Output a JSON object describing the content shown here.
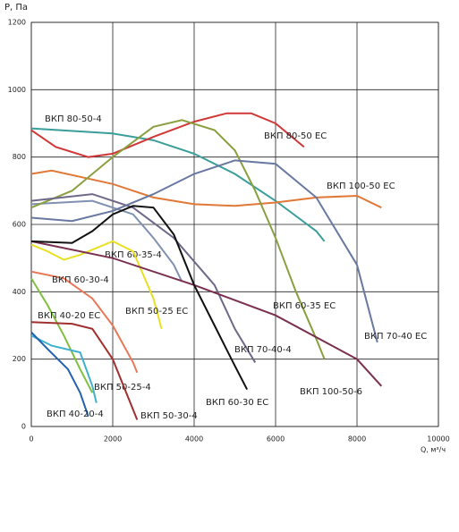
{
  "chart_data": {
    "type": "line",
    "y_label": "P, Па",
    "x_label": "Q, м³/ч",
    "xlim": [
      0,
      10000
    ],
    "ylim": [
      0,
      1200
    ],
    "xticks": [
      0,
      2000,
      4000,
      6000,
      8000,
      10000
    ],
    "yticks": [
      0,
      200,
      400,
      600,
      800,
      1000,
      1200
    ],
    "grid": true,
    "series": [
      {
        "name": "ВКП 80-50-4",
        "color": "#3a9e9a",
        "x": [
          0,
          2000,
          3000,
          4000,
          5000,
          6000,
          7000,
          7200
        ],
        "values": [
          885,
          870,
          850,
          810,
          750,
          670,
          580,
          550
        ]
      },
      {
        "name": "ВКП 80-50 EC",
        "color": "#d03838",
        "x": [
          0,
          600,
          1400,
          2000,
          3000,
          4000,
          4800,
          5400,
          6000,
          6700
        ],
        "values": [
          880,
          830,
          800,
          810,
          860,
          905,
          930,
          930,
          900,
          830
        ]
      },
      {
        "name": "ВКП 100-50 EC",
        "color": "#e07838",
        "x": [
          0,
          500,
          2000,
          3000,
          4000,
          5000,
          6000,
          7000,
          8000,
          8600
        ],
        "values": [
          750,
          760,
          720,
          680,
          660,
          655,
          665,
          680,
          685,
          650
        ]
      },
      {
        "name": "ВКП 60-35-4",
        "color": "#8090b0",
        "x": [
          0,
          1500,
          2500,
          3000,
          3500,
          3700
        ],
        "values": [
          660,
          670,
          630,
          560,
          480,
          430
        ]
      },
      {
        "name": "ВКП 60-30-4",
        "color": "#e87858",
        "x": [
          0,
          800,
          1500,
          2000,
          2500,
          2600
        ],
        "values": [
          460,
          440,
          380,
          300,
          190,
          160
        ]
      },
      {
        "name": "ВКП 50-25 EC",
        "color": "#e8e020",
        "x": [
          0,
          400,
          800,
          1200,
          2000,
          2500,
          3000,
          3200
        ],
        "values": [
          540,
          520,
          495,
          510,
          550,
          520,
          380,
          290
        ]
      },
      {
        "name": "ВКП 60-35 EC",
        "color": "#8aa040",
        "x": [
          0,
          1000,
          2000,
          3000,
          3700,
          4500,
          5000,
          5500,
          6000,
          6500,
          7000,
          7200
        ],
        "values": [
          650,
          700,
          800,
          890,
          910,
          880,
          820,
          700,
          560,
          400,
          260,
          200
        ]
      },
      {
        "name": "ВКП 40-20 EC",
        "color": "#80c040",
        "x": [
          0,
          400,
          800,
          1200,
          1500
        ],
        "values": [
          440,
          360,
          270,
          170,
          100
        ]
      },
      {
        "name": "ВКП 70-40-4",
        "color": "#706888",
        "x": [
          0,
          1500,
          2500,
          3500,
          4500,
          5000,
          5500
        ],
        "values": [
          670,
          690,
          650,
          560,
          420,
          290,
          190
        ]
      },
      {
        "name": "ВКП 70-40 EC",
        "color": "#6878a0",
        "x": [
          0,
          1000,
          2000,
          3000,
          4000,
          5000,
          6000,
          7000,
          8000,
          8500
        ],
        "values": [
          620,
          610,
          640,
          690,
          750,
          790,
          780,
          680,
          480,
          250
        ]
      },
      {
        "name": "ВКП 50-25-4",
        "color": "#40b0d0",
        "x": [
          0,
          500,
          1200,
          1500,
          1600
        ],
        "values": [
          270,
          240,
          220,
          120,
          70
        ]
      },
      {
        "name": "ВКП 100-50-6",
        "color": "#7a3050",
        "x": [
          0,
          2000,
          4000,
          6000,
          8000,
          8600
        ],
        "values": [
          550,
          500,
          420,
          330,
          200,
          120
        ]
      },
      {
        "name": "ВКП 60-30 EC",
        "color": "#111111",
        "x": [
          0,
          1000,
          1500,
          2000,
          2500,
          3000,
          3500,
          4000,
          4500,
          5000,
          5300
        ],
        "values": [
          550,
          545,
          580,
          630,
          655,
          650,
          570,
          420,
          300,
          180,
          110
        ]
      },
      {
        "name": "ВКП 40-20-4",
        "color": "#2060b0",
        "x": [
          0,
          400,
          900,
          1200,
          1400
        ],
        "values": [
          280,
          230,
          170,
          100,
          30
        ]
      },
      {
        "name": "ВКП 50-30-4",
        "color": "#a03030",
        "x": [
          0,
          1000,
          1500,
          2000,
          2400,
          2600
        ],
        "values": [
          310,
          305,
          290,
          200,
          80,
          20
        ]
      }
    ]
  }
}
